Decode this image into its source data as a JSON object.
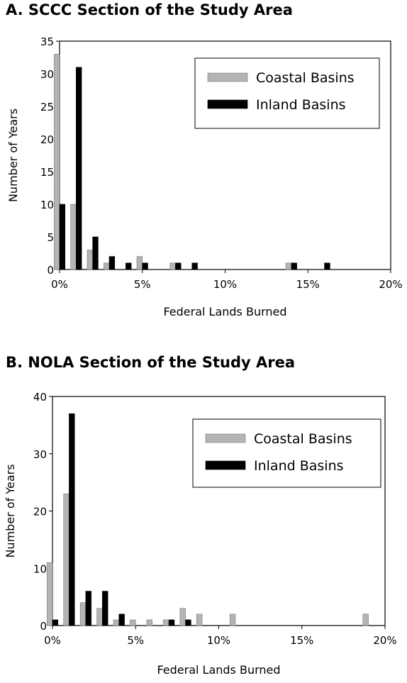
{
  "chart_data": [
    {
      "type": "bar",
      "title": "A. SCCC Section of the Study Area",
      "xlabel": "Federal Lands Burned",
      "ylabel": "Number of Years",
      "x_tick_labels": [
        "0%",
        "5%",
        "10%",
        "15%",
        "20%"
      ],
      "xlim": [
        0,
        20
      ],
      "ylim": [
        0,
        35
      ],
      "y_ticks": [
        0,
        5,
        10,
        15,
        20,
        25,
        30,
        35
      ],
      "legend_position": "top-right",
      "series": [
        {
          "name": "Coastal Basins",
          "color": "#b4b4b4",
          "x": [
            0,
            1,
            2,
            3,
            5,
            7,
            14
          ],
          "values": [
            33,
            10,
            3,
            1,
            2,
            1,
            1
          ]
        },
        {
          "name": "Inland Basins",
          "color": "#000000",
          "x": [
            0,
            1,
            2,
            3,
            4,
            5,
            7,
            8,
            14,
            16
          ],
          "values": [
            10,
            31,
            5,
            2,
            1,
            1,
            1,
            1,
            1,
            1
          ]
        }
      ]
    },
    {
      "type": "bar",
      "title": "B. NOLA Section of the Study Area",
      "xlabel": "Federal Lands Burned",
      "ylabel": "Number of Years",
      "x_tick_labels": [
        "0%",
        "5%",
        "10%",
        "15%",
        "20%"
      ],
      "xlim": [
        0,
        20
      ],
      "ylim": [
        0,
        40
      ],
      "y_ticks": [
        0,
        10,
        20,
        30,
        40
      ],
      "legend_position": "top-right",
      "series": [
        {
          "name": "Coastal Basins",
          "color": "#b4b4b4",
          "x": [
            0,
            1,
            2,
            3,
            4,
            5,
            6,
            7,
            8,
            9,
            11,
            19
          ],
          "values": [
            11,
            23,
            4,
            3,
            1,
            1,
            1,
            1,
            3,
            2,
            2,
            2
          ]
        },
        {
          "name": "Inland Basins",
          "color": "#000000",
          "x": [
            0,
            1,
            2,
            3,
            4,
            7,
            8
          ],
          "values": [
            1,
            37,
            6,
            6,
            2,
            1,
            1
          ]
        }
      ]
    }
  ]
}
